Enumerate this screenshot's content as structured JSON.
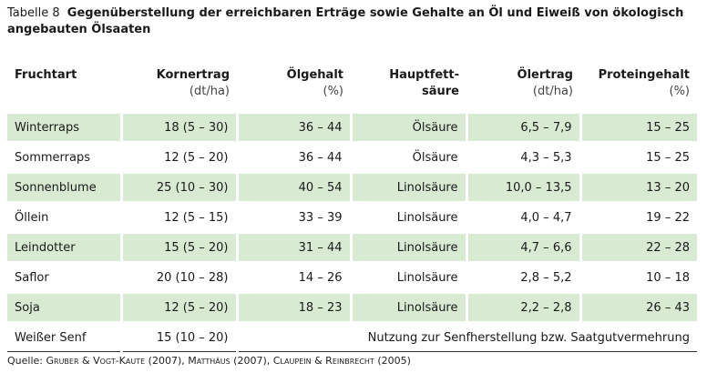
{
  "caption": {
    "number": "Tabelle 8",
    "text": "Gegenüberstellung der erreichbaren Erträge sowie Gehalte an Öl und Eiweiß von ökologisch angebauten Ölsaaten"
  },
  "headers": [
    {
      "label": "Fruchtart",
      "unit": ""
    },
    {
      "label": "Kornertrag",
      "unit": "(dt/ha)"
    },
    {
      "label": "Ölgehalt",
      "unit": "(%)"
    },
    {
      "label": "Hauptfett-",
      "unit": "säure"
    },
    {
      "label": "Ölertrag",
      "unit": "(dt/ha)"
    },
    {
      "label": "Proteingehalt",
      "unit": "(%)"
    }
  ],
  "rows": [
    [
      "Winterraps",
      "18 (5 – 30)",
      "36 – 44",
      "Ölsäure",
      "6,5 – 7,9",
      "15 – 25"
    ],
    [
      "Sommerraps",
      "12 (5 – 20)",
      "36 – 44",
      "Ölsäure",
      "4,3 – 5,3",
      "15 – 25"
    ],
    [
      "Sonnenblume",
      "25 (10 – 30)",
      "40 – 54",
      "Linolsäure",
      "10,0 – 13,5",
      "13 – 20"
    ],
    [
      "Öllein",
      "12 (5 – 15)",
      "33 – 39",
      "Linolsäure",
      "4,0 – 4,7",
      "19 – 22"
    ],
    [
      "Leindotter",
      "15 (5 – 20)",
      "31 – 44",
      "Linolsäure",
      "4,7 – 6,6",
      "22 – 28"
    ],
    [
      "Saflor",
      "20 (10 – 28)",
      "14 – 26",
      "Linolsäure",
      "2,8 – 5,2",
      "10 – 18"
    ],
    [
      "Soja",
      "12 (5 – 20)",
      "18 – 23",
      "Linolsäure",
      "2,2 – 2,8",
      "26 – 43"
    ]
  ],
  "last_row": {
    "crop": "Weißer Senf",
    "yield": "15 (10 – 20)",
    "note": "Nutzung zur Senfherstellung bzw. Saatgutvermehrung"
  },
  "source": {
    "prefix": "Quelle:",
    "a1": "Gruber & Vogt-Kaute",
    "y1": "(2007),",
    "a2": "Matthäus",
    "y2": "(2007),",
    "a3": "Claupein & Reinbrecht",
    "y3": "(2005)"
  },
  "colors": {
    "shade": "#d9ead3"
  }
}
